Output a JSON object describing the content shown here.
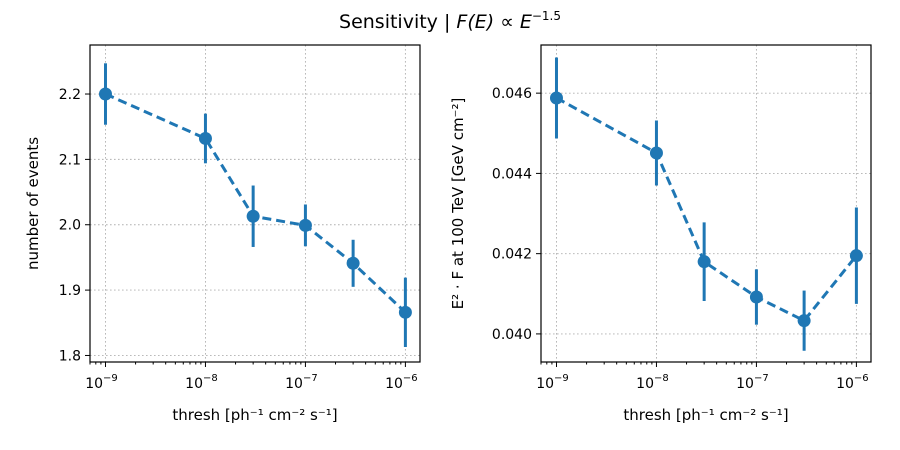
{
  "figure": {
    "title_main": "Sensitivity | ",
    "title_math": "F(E) ∝ E",
    "title_exp": "−1.5"
  },
  "colors": {
    "series": "#1f77b4",
    "grid": "#b0b0b0"
  },
  "chart_data": [
    {
      "type": "line",
      "xscale": "log",
      "grid": true,
      "xlim": [
        7e-10,
        1.4e-06
      ],
      "ylim": [
        1.79,
        2.275
      ],
      "xticks": [
        {
          "value": 1e-09,
          "label": "10",
          "exp": "−9"
        },
        {
          "value": 1e-08,
          "label": "10",
          "exp": "−8"
        },
        {
          "value": 1e-07,
          "label": "10",
          "exp": "−7"
        },
        {
          "value": 1e-06,
          "label": "10",
          "exp": "−6"
        }
      ],
      "yticks": [
        {
          "value": 1.8,
          "label": "1.8"
        },
        {
          "value": 1.9,
          "label": "1.9"
        },
        {
          "value": 2.0,
          "label": "2.0"
        },
        {
          "value": 2.1,
          "label": "2.1"
        },
        {
          "value": 2.2,
          "label": "2.2"
        }
      ],
      "xlabel": "thresh    [ph⁻¹ cm⁻² s⁻¹]",
      "ylabel": "number of events",
      "x": [
        1e-09,
        1e-08,
        3e-08,
        1e-07,
        3e-07,
        1e-06
      ],
      "y": [
        2.2,
        2.132,
        2.013,
        1.999,
        1.941,
        1.866
      ],
      "yerr": [
        0.047,
        0.038,
        0.047,
        0.032,
        0.036,
        0.053
      ]
    },
    {
      "type": "line",
      "xscale": "log",
      "grid": true,
      "xlim": [
        7e-10,
        1.4e-06
      ],
      "ylim": [
        0.0393,
        0.0472
      ],
      "xticks": [
        {
          "value": 1e-09,
          "label": "10",
          "exp": "−9"
        },
        {
          "value": 1e-08,
          "label": "10",
          "exp": "−8"
        },
        {
          "value": 1e-07,
          "label": "10",
          "exp": "−7"
        },
        {
          "value": 1e-06,
          "label": "10",
          "exp": "−6"
        }
      ],
      "yticks": [
        {
          "value": 0.04,
          "label": "0.040"
        },
        {
          "value": 0.042,
          "label": "0.042"
        },
        {
          "value": 0.044,
          "label": "0.044"
        },
        {
          "value": 0.046,
          "label": "0.046"
        }
      ],
      "xlabel": "thresh    [ph⁻¹ cm⁻² s⁻¹]",
      "ylabel": "E² · F at 100 TeV   [GeV cm⁻²]",
      "x": [
        1e-09,
        1e-08,
        3e-08,
        1e-07,
        3e-07,
        1e-06
      ],
      "y": [
        0.04588,
        0.04451,
        0.0418,
        0.04092,
        0.04033,
        0.04195
      ],
      "yerr": [
        0.00101,
        0.00081,
        0.00098,
        0.00069,
        0.00075,
        0.0012
      ]
    }
  ]
}
